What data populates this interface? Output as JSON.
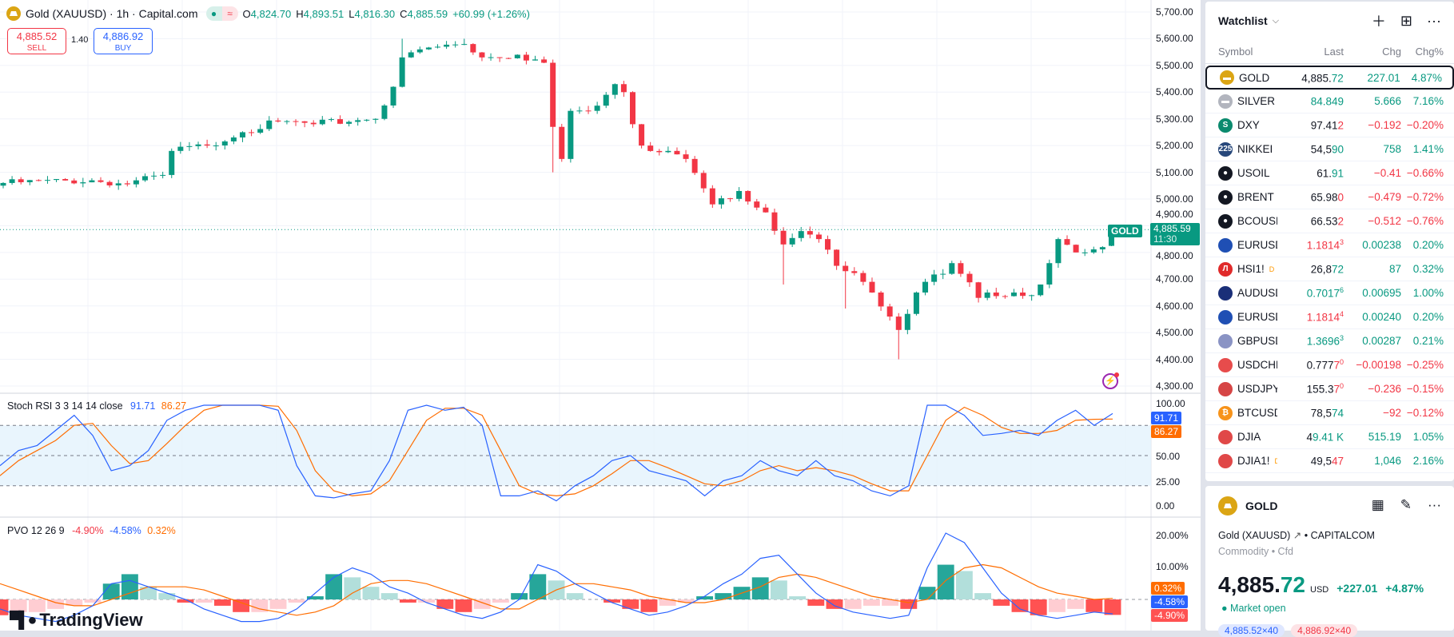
{
  "legend": {
    "title": "Gold (XAUUSD) · 1h · Capital.com",
    "o_lbl": "O",
    "o": "4,824.70",
    "h_lbl": "H",
    "h": "4,893.51",
    "l_lbl": "L",
    "l": "4,816.30",
    "c_lbl": "C",
    "c": "4,885.59",
    "change": "+60.99 (+1.26%)"
  },
  "trade": {
    "sell_price": "4,885.52",
    "sell_label": "SELL",
    "spread": "1.40",
    "buy_price": "4,886.92",
    "buy_label": "BUY"
  },
  "colors": {
    "up": "#089981",
    "down": "#f23645",
    "k": "#2962ff",
    "d": "#ff6d00",
    "blue": "#2962ff"
  },
  "price_axis": [
    "5,700.00",
    "5,600.00",
    "5,500.00",
    "5,400.00",
    "5,300.00",
    "5,200.00",
    "5,100.00",
    "5,000.00",
    "4,900.00",
    "4,800.00",
    "4,700.00",
    "4,600.00",
    "4,500.00",
    "4,400.00",
    "4,300.00"
  ],
  "last_price": {
    "symbol": "GOLD",
    "price": "4,885.59",
    "countdown": "11:30",
    "value": 4885.59
  },
  "chart_data": {
    "type": "candlestick",
    "ylim": [
      4300,
      5700
    ],
    "bars": 126,
    "close_keypoints": [
      [
        0,
        5060
      ],
      [
        10,
        5070
      ],
      [
        14,
        5055
      ],
      [
        18,
        5090
      ],
      [
        19,
        5180
      ],
      [
        23,
        5200
      ],
      [
        27,
        5250
      ],
      [
        31,
        5290
      ],
      [
        35,
        5280
      ],
      [
        40,
        5295
      ],
      [
        42,
        5300
      ],
      [
        43,
        5350
      ],
      [
        44,
        5420
      ],
      [
        45,
        5530
      ],
      [
        47,
        5560
      ],
      [
        49,
        5570
      ],
      [
        52,
        5580
      ],
      [
        54,
        5530
      ],
      [
        58,
        5540
      ],
      [
        61,
        5510
      ],
      [
        62,
        5270
      ],
      [
        63,
        5150
      ],
      [
        64,
        5330
      ],
      [
        66,
        5330
      ],
      [
        68,
        5390
      ],
      [
        69,
        5430
      ],
      [
        70,
        5400
      ],
      [
        71,
        5280
      ],
      [
        72,
        5200
      ],
      [
        75,
        5180
      ],
      [
        77,
        5150
      ],
      [
        79,
        5040
      ],
      [
        80,
        4980
      ],
      [
        83,
        5030
      ],
      [
        86,
        4950
      ],
      [
        88,
        4830
      ],
      [
        90,
        4880
      ],
      [
        92,
        4850
      ],
      [
        94,
        4750
      ],
      [
        95,
        4730
      ],
      [
        97,
        4690
      ],
      [
        98,
        4650
      ],
      [
        100,
        4560
      ],
      [
        101,
        4510
      ],
      [
        102,
        4570
      ],
      [
        103,
        4650
      ],
      [
        104,
        4690
      ],
      [
        106,
        4720
      ],
      [
        107,
        4760
      ],
      [
        108,
        4720
      ],
      [
        110,
        4630
      ],
      [
        111,
        4650
      ],
      [
        114,
        4650
      ],
      [
        116,
        4640
      ],
      [
        117,
        4680
      ],
      [
        118,
        4760
      ],
      [
        119,
        4850
      ],
      [
        121,
        4800
      ],
      [
        122,
        4800
      ],
      [
        124,
        4820
      ],
      [
        125,
        4885.59
      ]
    ],
    "wick_extremes": [
      [
        45,
        5600,
        null
      ],
      [
        52,
        5600,
        null
      ],
      [
        62,
        null,
        5100
      ],
      [
        88,
        null,
        4680
      ],
      [
        95,
        null,
        4590
      ],
      [
        101,
        null,
        4400
      ]
    ]
  },
  "stoch": {
    "title": "Stoch RSI 3 3 14 14 close",
    "k_val": "91.71",
    "d_val": "86.27",
    "axis": [
      "100.00",
      "50.00",
      "25.00",
      "0.00"
    ],
    "k": [
      40,
      55,
      60,
      75,
      90,
      70,
      35,
      40,
      55,
      85,
      95,
      100,
      100,
      100,
      100,
      95,
      40,
      10,
      8,
      12,
      15,
      45,
      95,
      100,
      95,
      98,
      80,
      10,
      10,
      15,
      5,
      20,
      30,
      45,
      50,
      35,
      30,
      25,
      10,
      25,
      30,
      45,
      35,
      30,
      45,
      30,
      25,
      15,
      10,
      20,
      100,
      100,
      90,
      70,
      72,
      75,
      70,
      85,
      95,
      80,
      91.71
    ],
    "d": [
      30,
      45,
      55,
      65,
      80,
      82,
      60,
      42,
      45,
      62,
      80,
      95,
      100,
      100,
      100,
      99,
      75,
      35,
      15,
      10,
      12,
      25,
      55,
      85,
      97,
      97,
      90,
      55,
      20,
      12,
      10,
      12,
      20,
      32,
      45,
      45,
      38,
      30,
      22,
      20,
      25,
      35,
      40,
      35,
      38,
      35,
      30,
      22,
      15,
      15,
      50,
      85,
      98,
      90,
      78,
      72,
      72,
      75,
      85,
      86,
      86.27
    ]
  },
  "pvo": {
    "title": "PVO 12 26 9",
    "v1": "-4.90%",
    "v2": "-4.58%",
    "v3": "0.32%",
    "axis": [
      "20.00%",
      "10.00%"
    ],
    "hist": [
      -5,
      -4,
      -4,
      -3,
      -2,
      -1,
      5,
      8,
      4,
      2,
      -1,
      -1,
      -2,
      -4,
      -4,
      -3,
      -1,
      1,
      8,
      7,
      4,
      2,
      -1,
      -1,
      -3,
      -4,
      -3,
      -1,
      2,
      8,
      6,
      2,
      0,
      -1,
      -3,
      -4,
      -2,
      -1,
      1,
      2,
      4,
      7,
      6,
      1,
      -2,
      -3,
      -3,
      -2,
      -2,
      -3,
      4,
      11,
      9,
      2,
      -2,
      -4,
      -5,
      -4,
      -3,
      -4,
      -4.9
    ],
    "line": [
      -3,
      -5,
      -6,
      -7,
      -5,
      -2,
      5,
      6,
      4,
      2,
      0,
      -3,
      -5,
      -7,
      -7,
      -6,
      -3,
      2,
      7,
      10,
      8,
      4,
      2,
      -1,
      -3,
      -5,
      -6,
      -4,
      0,
      11,
      9,
      5,
      2,
      -1,
      -3,
      -5,
      -4,
      -2,
      1,
      5,
      8,
      13,
      14,
      8,
      2,
      -2,
      -4,
      -5,
      -6,
      -5,
      10,
      21,
      18,
      10,
      2,
      -3,
      -5,
      -6,
      -5,
      -4,
      -4.58
    ],
    "signal": [
      5,
      3,
      1,
      -1,
      -2,
      -2,
      0,
      2,
      4,
      4,
      4,
      3,
      1,
      -1,
      -3,
      -4,
      -5,
      -4,
      -2,
      2,
      5,
      6,
      6,
      5,
      3,
      1,
      -1,
      -3,
      -3,
      0,
      3,
      5,
      5,
      4,
      3,
      1,
      0,
      -1,
      -1,
      0,
      2,
      4,
      7,
      8,
      7,
      5,
      3,
      1,
      0,
      -1,
      0,
      6,
      10,
      11,
      10,
      7,
      4,
      2,
      1,
      0,
      0.32
    ]
  },
  "logo": "TradingView",
  "watchlist": {
    "title": "Watchlist",
    "columns": [
      "Symbol",
      "Last",
      "Chg",
      "Chg%"
    ],
    "rows": [
      {
        "symbol": "GOLD",
        "icon": "gold-bars-icon",
        "ic": "#dba514",
        "g": "▬",
        "lm": "4,885.",
        "lh": "72",
        "ls": "",
        "ld": "up",
        "chg": "227.01",
        "pct": "4.87%",
        "dir": "up",
        "sel": true
      },
      {
        "symbol": "SILVER",
        "icon": "silver-bars-icon",
        "ic": "#b2b5be",
        "g": "▬",
        "lm": "",
        "lh": "84.849",
        "ls": "",
        "ld": "up",
        "chg": "5.666",
        "pct": "7.16%",
        "dir": "up"
      },
      {
        "symbol": "DXY",
        "icon": "dollar-index-icon",
        "ic": "#0b8a6e",
        "g": "S",
        "lm": "97.41",
        "lh": "2",
        "ls": "",
        "ld": "dn",
        "chg": "−0.192",
        "pct": "−0.20%",
        "dir": "dn"
      },
      {
        "symbol": "NIKKEI",
        "icon": "nikkei-icon",
        "ic": "#27477a",
        "g": "225",
        "lm": "54,5",
        "lh": "90",
        "ls": "",
        "ld": "up",
        "chg": "758",
        "pct": "1.41%",
        "dir": "up"
      },
      {
        "symbol": "USOIL",
        "icon": "oil-drop-icon",
        "ic": "#131722",
        "g": "●",
        "lm": "61.",
        "lh": "91",
        "ls": "",
        "ld": "up",
        "chg": "−0.41",
        "pct": "−0.66%",
        "dir": "dn"
      },
      {
        "symbol": "BRENT",
        "icon": "oil-drop-icon",
        "ic": "#131722",
        "g": "●",
        "lm": "65.98",
        "lh": "0",
        "ls": "",
        "ld": "dn",
        "chg": "−0.479",
        "pct": "−0.72%",
        "dir": "dn"
      },
      {
        "symbol": "BCOUSD",
        "icon": "oil-drop-icon",
        "ic": "#131722",
        "g": "●",
        "lm": "66.53",
        "lh": "2",
        "ls": "",
        "ld": "dn",
        "chg": "−0.512",
        "pct": "−0.76%",
        "dir": "dn"
      },
      {
        "symbol": "EURUSD",
        "icon": "eu-us-flag-icon",
        "ic": "#1f4fb4",
        "g": "",
        "lm": "",
        "lh": "1.1814",
        "ls": "3",
        "ld": "dn",
        "chg": "0.00238",
        "pct": "0.20%",
        "dir": "up"
      },
      {
        "symbol": "HSI1!",
        "badge": "D",
        "icon": "hsi-icon",
        "ic": "#e02a2a",
        "g": "Л",
        "lm": "26,8",
        "lh": "72",
        "ls": "",
        "ld": "up",
        "chg": "87",
        "pct": "0.32%",
        "dir": "up"
      },
      {
        "symbol": "AUDUSD",
        "icon": "au-us-flag-icon",
        "ic": "#1a2f78",
        "g": "",
        "lm": "",
        "lh": "0.7017",
        "ls": "6",
        "ld": "up",
        "chg": "0.00695",
        "pct": "1.00%",
        "dir": "up"
      },
      {
        "symbol": "EURUSD",
        "icon": "eu-us-flag-icon",
        "ic": "#1f4fb4",
        "g": "",
        "lm": "",
        "lh": "1.1814",
        "ls": "4",
        "ld": "dn",
        "chg": "0.00240",
        "pct": "0.20%",
        "dir": "up"
      },
      {
        "symbol": "GBPUSD",
        "icon": "gb-us-flag-icon",
        "ic": "#8a93c4",
        "g": "",
        "lm": "",
        "lh": "1.3696",
        "ls": "3",
        "ld": "up",
        "chg": "0.00287",
        "pct": "0.21%",
        "dir": "up"
      },
      {
        "symbol": "USDCHF",
        "icon": "us-ch-flag-icon",
        "ic": "#e74c4c",
        "g": "",
        "lm": "0.777",
        "lh": "7",
        "ls": "0",
        "ld": "dn",
        "chg": "−0.00198",
        "pct": "−0.25%",
        "dir": "dn"
      },
      {
        "symbol": "USDJPY",
        "icon": "us-jp-flag-icon",
        "ic": "#d64545",
        "g": "",
        "lm": "155.3",
        "lh": "7",
        "ls": "0",
        "ld": "dn",
        "chg": "−0.236",
        "pct": "−0.15%",
        "dir": "dn"
      },
      {
        "symbol": "BTCUSD",
        "icon": "bitcoin-icon",
        "ic": "#f7931a",
        "g": "₿",
        "lm": "78,5",
        "lh": "74",
        "ls": "",
        "ld": "up",
        "chg": "−92",
        "pct": "−0.12%",
        "dir": "dn"
      },
      {
        "symbol": "DJIA",
        "icon": "us-flag-icon",
        "ic": "#e04848",
        "g": "",
        "lm": "4",
        "lh": "9.41 K",
        "ls": "",
        "ld": "up",
        "chg": "515.19",
        "pct": "1.05%",
        "dir": "up"
      },
      {
        "symbol": "DJIA1!",
        "badge": "D",
        "icon": "us-flag-icon",
        "ic": "#e04848",
        "g": "",
        "lm": "49,5",
        "lh": "47",
        "ls": "",
        "ld": "dn",
        "chg": "1,046",
        "pct": "2.16%",
        "dir": "up"
      }
    ]
  },
  "detail": {
    "symbol": "GOLD",
    "name": "Gold (XAUUSD)",
    "exchange": "CAPITALCOM",
    "category": "Commodity",
    "type": "Cfd",
    "price_main": "4,885.",
    "price_hi": "72",
    "currency": "USD",
    "change": "+227.01",
    "change_pct": "+4.87%",
    "status": "Market open",
    "bid": "4,885.52×40",
    "ask": "4,886.92×40"
  }
}
